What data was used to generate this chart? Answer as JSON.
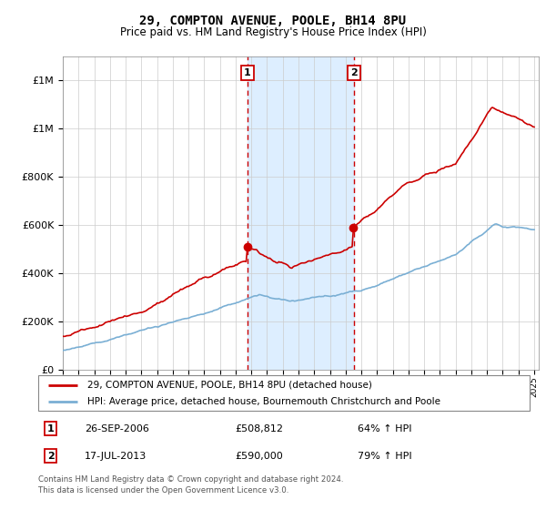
{
  "title": "29, COMPTON AVENUE, POOLE, BH14 8PU",
  "subtitle": "Price paid vs. HM Land Registry's House Price Index (HPI)",
  "legend_line1": "29, COMPTON AVENUE, POOLE, BH14 8PU (detached house)",
  "legend_line2": "HPI: Average price, detached house, Bournemouth Christchurch and Poole",
  "transaction1_date": "26-SEP-2006",
  "transaction1_price": 508812,
  "transaction1_label": "£508,812",
  "transaction1_pct": "64% ↑ HPI",
  "transaction2_date": "17-JUL-2013",
  "transaction2_price": 590000,
  "transaction2_label": "£590,000",
  "transaction2_pct": "79% ↑ HPI",
  "footer": "Contains HM Land Registry data © Crown copyright and database right 2024.\nThis data is licensed under the Open Government Licence v3.0.",
  "red_color": "#cc0000",
  "blue_color": "#7aafd4",
  "shaded_color": "#ddeeff",
  "ylim_min": 0,
  "ylim_max": 1300000,
  "transaction1_year": 2006.75,
  "transaction2_year": 2013.54,
  "transaction1_value": 508812,
  "transaction2_value": 590000
}
